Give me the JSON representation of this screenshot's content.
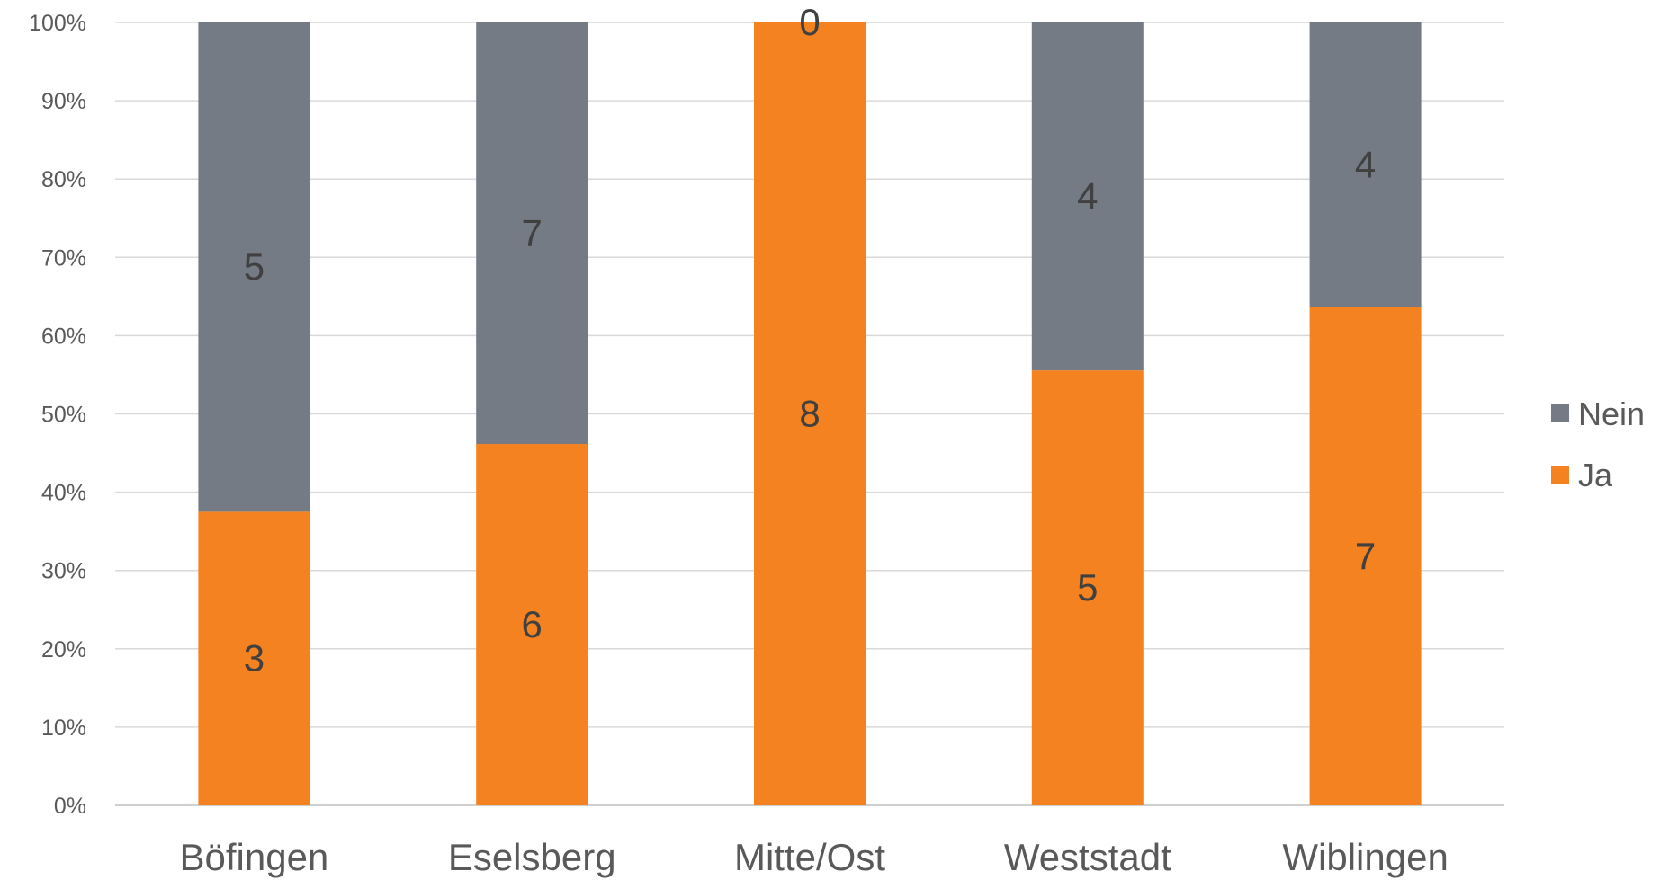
{
  "chart_data": {
    "type": "bar",
    "stacking": "percent",
    "categories": [
      "Böfingen",
      "Eselsberg",
      "Mitte/Ost",
      "Weststadt",
      "Wiblingen"
    ],
    "series": [
      {
        "name": "Ja",
        "values": [
          3,
          6,
          8,
          5,
          7
        ],
        "color": "#F58220"
      },
      {
        "name": "Nein",
        "values": [
          5,
          7,
          0,
          4,
          4
        ],
        "color": "#757B85"
      }
    ],
    "yticks": [
      "0%",
      "10%",
      "20%",
      "30%",
      "40%",
      "50%",
      "60%",
      "70%",
      "80%",
      "90%",
      "100%"
    ],
    "ylim": [
      0,
      100
    ],
    "grid": true,
    "legend": "right",
    "legend_order": [
      "Nein",
      "Ja"
    ]
  }
}
